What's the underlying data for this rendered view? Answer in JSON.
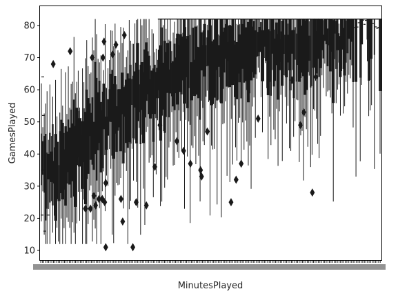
{
  "chart_data": {
    "type": "box",
    "title": "",
    "xlabel": "MinutesPlayed",
    "ylabel": "GamesPlayed",
    "ylim": [
      7,
      86
    ],
    "y_ticks": [
      10,
      20,
      30,
      40,
      50,
      60,
      70,
      80
    ],
    "x_tick_labels_legible": false,
    "box_color": "#1a1a1a",
    "grid": false,
    "legend": "none",
    "trend": [
      [
        0.0,
        34
      ],
      [
        0.05,
        36
      ],
      [
        0.1,
        42
      ],
      [
        0.15,
        47
      ],
      [
        0.2,
        51
      ],
      [
        0.25,
        55
      ],
      [
        0.3,
        59
      ],
      [
        0.35,
        62
      ],
      [
        0.4,
        65
      ],
      [
        0.45,
        67
      ],
      [
        0.5,
        69
      ],
      [
        0.55,
        70
      ],
      [
        0.6,
        71
      ],
      [
        0.65,
        72
      ],
      [
        0.7,
        73
      ],
      [
        0.75,
        74
      ],
      [
        0.8,
        75
      ],
      [
        0.85,
        76
      ],
      [
        0.9,
        77
      ],
      [
        0.95,
        78
      ],
      [
        1.0,
        78
      ]
    ],
    "outliers": [
      [
        0.035,
        68
      ],
      [
        0.085,
        72
      ],
      [
        0.13,
        23
      ],
      [
        0.145,
        23
      ],
      [
        0.15,
        70
      ],
      [
        0.155,
        27
      ],
      [
        0.16,
        24
      ],
      [
        0.17,
        26
      ],
      [
        0.18,
        26
      ],
      [
        0.182,
        70
      ],
      [
        0.185,
        75
      ],
      [
        0.187,
        25
      ],
      [
        0.19,
        11
      ],
      [
        0.19,
        31
      ],
      [
        0.21,
        71
      ],
      [
        0.22,
        74
      ],
      [
        0.235,
        26
      ],
      [
        0.24,
        19
      ],
      [
        0.245,
        77
      ],
      [
        0.27,
        11
      ],
      [
        0.28,
        25
      ],
      [
        0.31,
        24
      ],
      [
        0.335,
        36
      ],
      [
        0.35,
        49
      ],
      [
        0.4,
        44
      ],
      [
        0.42,
        41
      ],
      [
        0.44,
        37
      ],
      [
        0.47,
        35
      ],
      [
        0.473,
        33
      ],
      [
        0.49,
        47
      ],
      [
        0.56,
        25
      ],
      [
        0.575,
        32
      ],
      [
        0.59,
        37
      ],
      [
        0.64,
        51
      ],
      [
        0.74,
        63
      ],
      [
        0.765,
        49
      ],
      [
        0.775,
        53
      ],
      [
        0.8,
        28
      ],
      [
        0.81,
        64
      ]
    ]
  }
}
